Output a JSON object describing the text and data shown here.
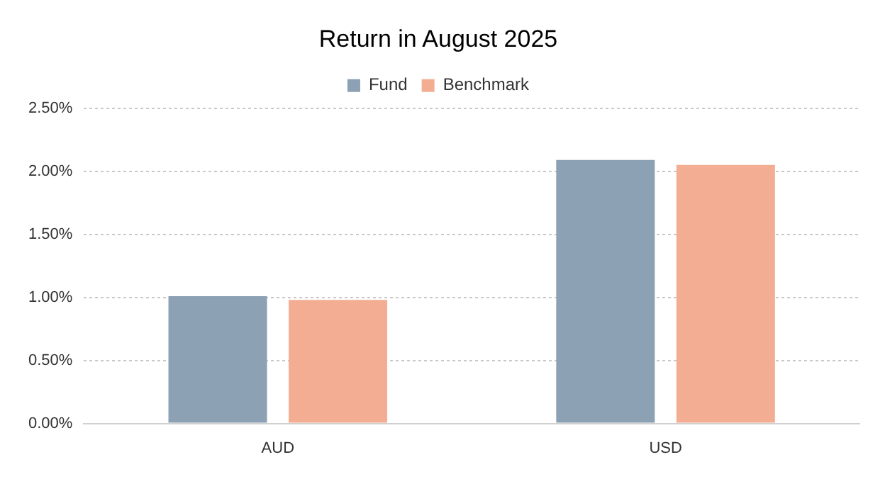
{
  "chart_data": {
    "type": "bar",
    "title": "Return in August 2025",
    "categories": [
      "AUD",
      "USD"
    ],
    "series": [
      {
        "name": "Fund",
        "color": "#8ca1b4",
        "values": [
          1.01,
          2.09
        ]
      },
      {
        "name": "Benchmark",
        "color": "#f3ad92",
        "values": [
          0.98,
          2.05
        ]
      }
    ],
    "ylim": [
      0,
      2.5
    ],
    "yticks": [
      {
        "value": 0,
        "label": "0.00%"
      },
      {
        "value": 0.5,
        "label": "0.50%"
      },
      {
        "value": 1,
        "label": "1.00%"
      },
      {
        "value": 1.5,
        "label": "1.50%"
      },
      {
        "value": 2,
        "label": "2.00%"
      },
      {
        "value": 2.5,
        "label": "2.50%"
      }
    ],
    "grid": "y",
    "legend": "top"
  }
}
